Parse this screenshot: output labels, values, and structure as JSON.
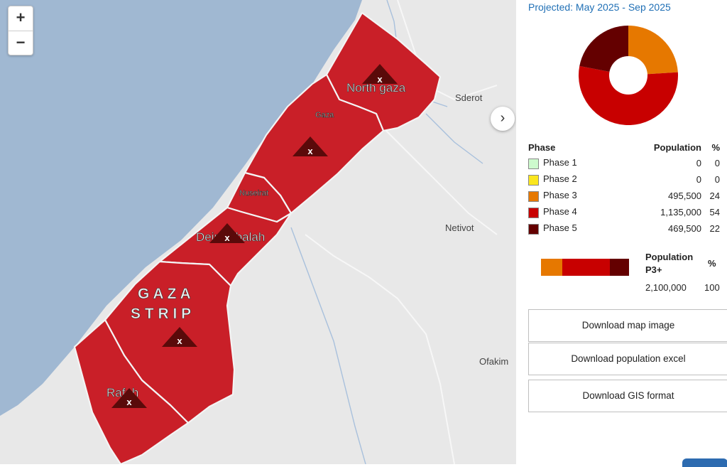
{
  "colors": {
    "sea": "#a0b8d2",
    "land": "#e8e8e8",
    "phase1": "#cdfacd",
    "phase2": "#fae61e",
    "phase3": "#e67800",
    "phase4": "#c80000",
    "phase5": "#640000",
    "region_fill": "#c91f28",
    "accent": "#1f6fb5"
  },
  "map": {
    "labels": {
      "north_gaza": "North gaza",
      "gaza": "Gaza",
      "nuseirat": "Nuseirat",
      "deir_al_balah": "Deir Al-balah",
      "gaza_strip": "G A Z A",
      "strip": "S T R I P",
      "rafah": "Rafah",
      "sderot": "Sderot",
      "netivot": "Netivot",
      "ofakim": "Ofakim"
    },
    "marker_glyph": "x",
    "zoom_in": "+",
    "zoom_out": "−",
    "expand_glyph": "›"
  },
  "panel": {
    "projected": "Projected: May 2025 - Sep 2025",
    "table": {
      "headers": [
        "Phase",
        "Population",
        "%"
      ],
      "rows": [
        {
          "phase": "Phase 1",
          "population": "0",
          "pct": "0",
          "color": "#cdfacd"
        },
        {
          "phase": "Phase 2",
          "population": "0",
          "pct": "0",
          "color": "#fae61e"
        },
        {
          "phase": "Phase 3",
          "population": "495,500",
          "pct": "24",
          "color": "#e67800"
        },
        {
          "phase": "Phase 4",
          "population": "1,135,000",
          "pct": "54",
          "color": "#c80000"
        },
        {
          "phase": "Phase 5",
          "population": "469,500",
          "pct": "22",
          "color": "#640000"
        }
      ]
    },
    "p3": {
      "header_line1": "Population",
      "header_line2": "P3+",
      "pct_header": "%",
      "population": "2,100,000",
      "pct": "100"
    },
    "buttons": {
      "map_image": "Download map image",
      "population_excel": "Download population excel",
      "gis": "Download GIS format"
    }
  }
}
